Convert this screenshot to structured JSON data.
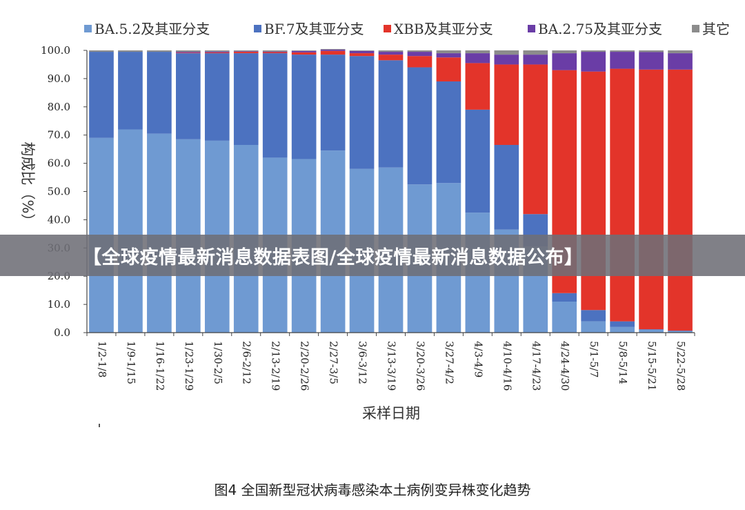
{
  "banner": {
    "text": "【全球疫情最新消息数据表图/全球疫情最新消息数据公布】"
  },
  "caption": "图4 全国新型冠状病毒感染本土病例变异株变化趋势",
  "chart_data": {
    "type": "bar",
    "stacked": true,
    "title": "",
    "xlabel": "采样日期",
    "ylabel": "构成比（%）",
    "ylim": [
      0,
      100
    ],
    "y_ticks": [
      "0.0",
      "10.0",
      "20.0",
      "30.0",
      "40.0",
      "50.0",
      "60.0",
      "70.0",
      "80.0",
      "90.0",
      "100.0"
    ],
    "legend_position": "top",
    "categories": [
      "1/2-1/8",
      "1/9-1/15",
      "1/16-1/22",
      "1/23-1/29",
      "1/30-2/5",
      "2/6-2/12",
      "2/13-2/19",
      "2/20-2/26",
      "2/27-3/5",
      "3/6-3/12",
      "3/13-3/19",
      "3/20-3/26",
      "3/27-4/2",
      "4/3-4/9",
      "4/10-4/16",
      "4/17-4/23",
      "4/24-4/30",
      "5/1-5/7",
      "5/8-5/14",
      "5/15-5/21",
      "5/22-5/28"
    ],
    "series": [
      {
        "name": "BA.5.2及其亚分支",
        "color": "#6f9ad2",
        "values": [
          69.0,
          72.0,
          70.5,
          68.5,
          68.0,
          66.5,
          62.0,
          61.5,
          64.5,
          58.0,
          58.5,
          52.5,
          53.0,
          42.5,
          36.5,
          30.5,
          11.0,
          4.0,
          2.0,
          1.0,
          0.5
        ]
      },
      {
        "name": "BF.7及其亚分支",
        "color": "#4c72c0",
        "values": [
          30.5,
          27.5,
          29.0,
          30.5,
          31.0,
          32.5,
          37.0,
          37.0,
          34.0,
          40.0,
          38.0,
          41.5,
          36.0,
          36.5,
          30.0,
          11.5,
          3.0,
          4.0,
          2.0,
          0.2,
          0.2
        ]
      },
      {
        "name": "XBB及其亚分支",
        "color": "#e3342a",
        "values": [
          0.0,
          0.0,
          0.0,
          0.2,
          0.3,
          0.5,
          0.4,
          0.8,
          1.3,
          1.0,
          2.0,
          4.0,
          8.5,
          16.5,
          28.5,
          53.0,
          79.0,
          84.5,
          89.5,
          92.0,
          92.5
        ]
      },
      {
        "name": "BA.2.75及其亚分支",
        "color": "#6a3da6",
        "values": [
          0.0,
          0.0,
          0.0,
          0.3,
          0.3,
          0.2,
          0.2,
          0.5,
          0.5,
          0.8,
          1.0,
          1.5,
          1.5,
          3.5,
          3.5,
          3.5,
          6.0,
          7.0,
          6.0,
          6.2,
          5.8
        ]
      },
      {
        "name": "其它",
        "color": "#8c8c8c",
        "values": [
          0.5,
          0.5,
          0.5,
          0.5,
          0.4,
          0.3,
          0.4,
          0.2,
          0.2,
          0.2,
          0.5,
          0.5,
          1.0,
          1.0,
          1.5,
          1.5,
          1.0,
          0.5,
          0.5,
          0.6,
          1.0
        ]
      }
    ]
  }
}
